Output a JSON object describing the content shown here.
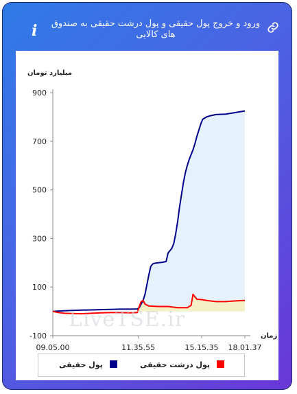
{
  "header": {
    "title": "ورود و خروج پول حقیقی و پول درشت حقیقی به صندوق های کالایی",
    "info_icon": "info-icon",
    "link_icon": "link-icon"
  },
  "chart_data": {
    "type": "line",
    "ylabel": "میلیارد تومان",
    "xlabel": "زمان",
    "yticks": [
      900,
      700,
      500,
      300,
      100,
      -100
    ],
    "ylim": [
      -100,
      900
    ],
    "xticks": [
      "09.05.00",
      "11.35.55",
      "15.15.35",
      "18.01.37"
    ],
    "grid": false,
    "legend_placement": "bottom",
    "series": [
      {
        "name": "پول حقیقی",
        "color": "#00008b",
        "fill": "#e6f2fb",
        "points": [
          [
            0,
            0
          ],
          [
            0.05,
            2
          ],
          [
            0.1,
            4
          ],
          [
            0.15,
            5
          ],
          [
            0.2,
            6
          ],
          [
            0.25,
            7
          ],
          [
            0.3,
            8
          ],
          [
            0.35,
            9
          ],
          [
            0.4,
            9
          ],
          [
            0.44,
            10
          ],
          [
            0.45,
            15
          ],
          [
            0.46,
            30
          ],
          [
            0.47,
            45
          ],
          [
            0.48,
            70
          ],
          [
            0.49,
            110
          ],
          [
            0.5,
            150
          ],
          [
            0.51,
            185
          ],
          [
            0.52,
            195
          ],
          [
            0.53,
            198
          ],
          [
            0.55,
            200
          ],
          [
            0.57,
            202
          ],
          [
            0.59,
            205
          ],
          [
            0.6,
            240
          ],
          [
            0.62,
            260
          ],
          [
            0.63,
            280
          ],
          [
            0.64,
            320
          ],
          [
            0.65,
            370
          ],
          [
            0.66,
            430
          ],
          [
            0.67,
            480
          ],
          [
            0.68,
            530
          ],
          [
            0.69,
            570
          ],
          [
            0.7,
            600
          ],
          [
            0.71,
            625
          ],
          [
            0.72,
            645
          ],
          [
            0.73,
            665
          ],
          [
            0.74,
            690
          ],
          [
            0.75,
            720
          ],
          [
            0.76,
            745
          ],
          [
            0.77,
            770
          ],
          [
            0.78,
            790
          ],
          [
            0.8,
            800
          ],
          [
            0.82,
            805
          ],
          [
            0.85,
            810
          ],
          [
            0.9,
            812
          ],
          [
            0.95,
            818
          ],
          [
            1.0,
            825
          ]
        ]
      },
      {
        "name": "پول درشت حقیقی",
        "color": "#ff0000",
        "fill": "#f5efc6",
        "points": [
          [
            0,
            0
          ],
          [
            0.03,
            -5
          ],
          [
            0.06,
            -8
          ],
          [
            0.1,
            -9
          ],
          [
            0.15,
            -10
          ],
          [
            0.2,
            -8
          ],
          [
            0.25,
            -6
          ],
          [
            0.3,
            -5
          ],
          [
            0.35,
            -5
          ],
          [
            0.4,
            -6
          ],
          [
            0.44,
            -5
          ],
          [
            0.45,
            20
          ],
          [
            0.46,
            40
          ],
          [
            0.47,
            45
          ],
          [
            0.48,
            30
          ],
          [
            0.5,
            22
          ],
          [
            0.55,
            20
          ],
          [
            0.6,
            20
          ],
          [
            0.65,
            15
          ],
          [
            0.7,
            15
          ],
          [
            0.72,
            25
          ],
          [
            0.73,
            70
          ],
          [
            0.74,
            60
          ],
          [
            0.75,
            50
          ],
          [
            0.78,
            48
          ],
          [
            0.8,
            45
          ],
          [
            0.85,
            40
          ],
          [
            0.9,
            40
          ],
          [
            0.95,
            43
          ],
          [
            1.0,
            45
          ]
        ]
      }
    ]
  }
}
